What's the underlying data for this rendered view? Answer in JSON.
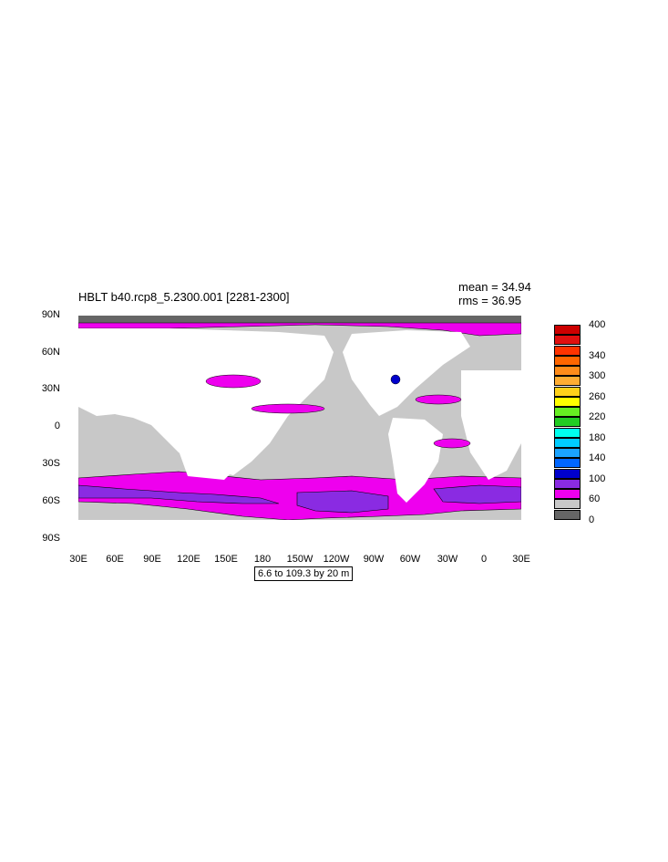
{
  "plot": {
    "title": "HBLT b40.rcp8_5.2300.001 [2281-2300]",
    "stats": {
      "mean": "mean = 34.94",
      "rms": "rms = 36.95"
    },
    "contour_info": "6.6 to 109.3 by 20 m",
    "lat_labels": [
      "90N",
      "60N",
      "30N",
      "0",
      "30S",
      "60S",
      "90S"
    ],
    "lon_labels": [
      "30E",
      "60E",
      "90E",
      "120E",
      "150E",
      "180",
      "150W",
      "120W",
      "90W",
      "60W",
      "30W",
      "0",
      "30E"
    ]
  },
  "colorbar": {
    "colors": [
      "#cc0000",
      "#e01010",
      "#ff3300",
      "#ff6600",
      "#ff8c1a",
      "#ffad33",
      "#ffd11a",
      "#ffff00",
      "#66ee22",
      "#22cc22",
      "#00ffee",
      "#00ccff",
      "#1aa3ff",
      "#0066ff",
      "#0000cc",
      "#8a2be2",
      "#ee00ee",
      "#c8c8c8",
      "#666666"
    ],
    "labels": [
      "400",
      "340",
      "300",
      "260",
      "220",
      "180",
      "140",
      "100",
      "60",
      "0"
    ],
    "label_box_index": [
      0,
      3,
      5,
      7,
      9,
      11,
      13,
      15,
      17,
      19
    ]
  },
  "colors": {
    "land": "#ffffff",
    "ocean_low": "#c8c8c8",
    "ocean_min": "#666666",
    "magenta": "#ee00ee",
    "purple": "#8a2be2",
    "blue": "#0000cc"
  }
}
